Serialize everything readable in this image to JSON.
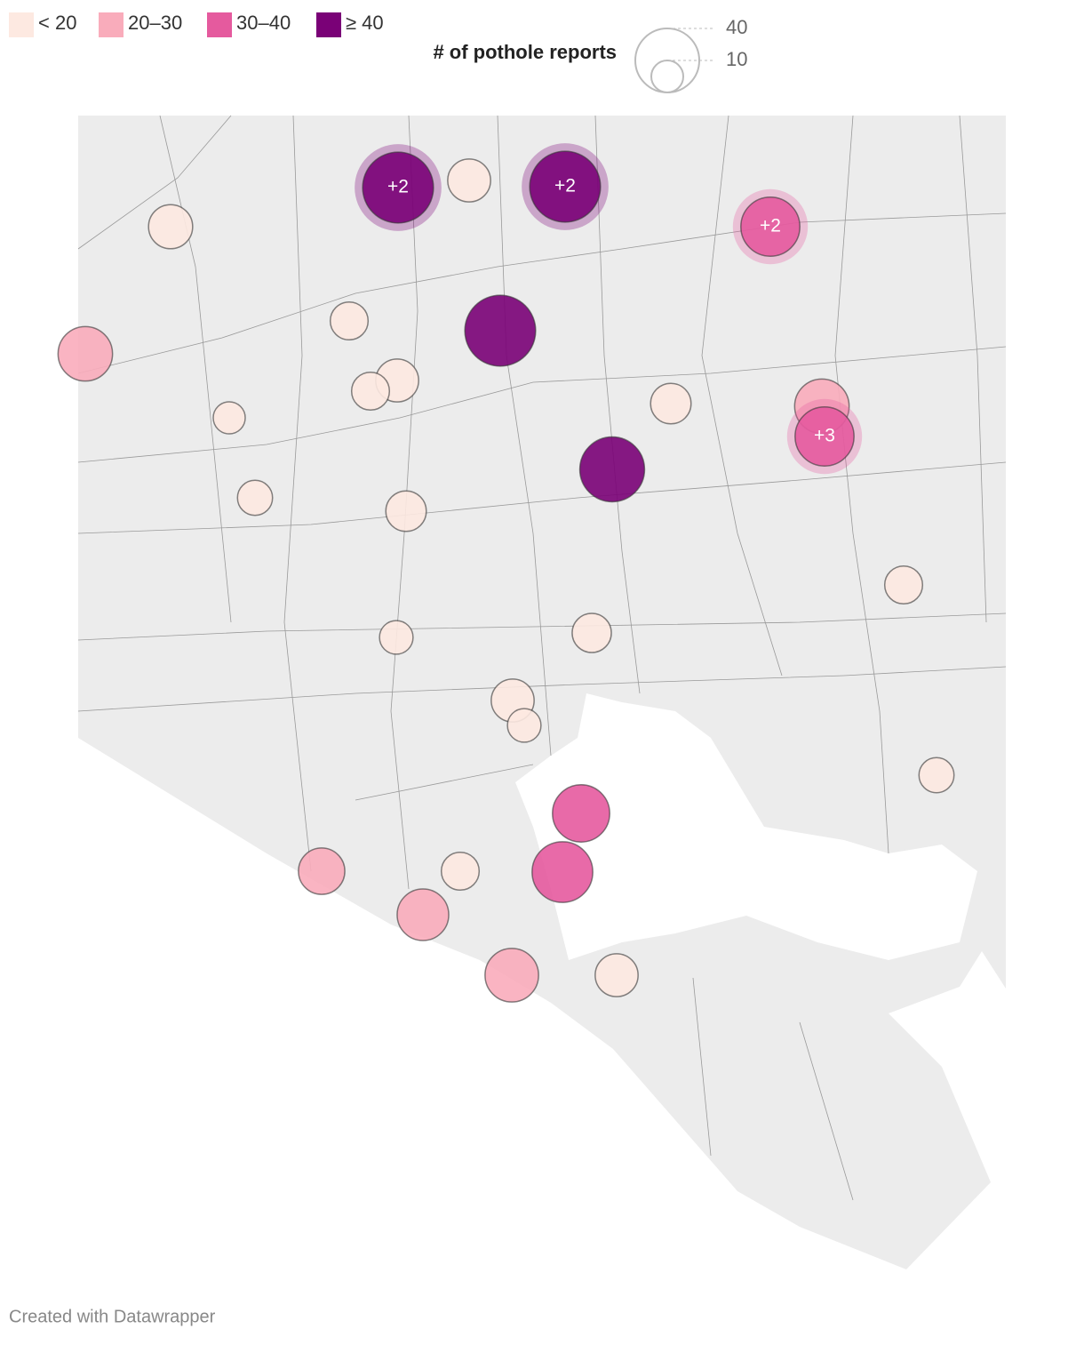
{
  "color_legend": {
    "breaks": [
      20,
      30,
      40
    ],
    "items": [
      {
        "label": "< 20",
        "color": "#fde9e1"
      },
      {
        "label": "20–30",
        "color": "#f9acbb"
      },
      {
        "label": "30–40",
        "color": "#e55a9e"
      },
      {
        "label": "≥ 40",
        "color": "#7a0177"
      }
    ]
  },
  "size_legend": {
    "title": "# of pothole reports",
    "ticks": [
      40,
      10
    ]
  },
  "bubbles": [
    {
      "value": 49,
      "cluster_label": "+2"
    },
    {
      "value": 18
    },
    {
      "value": 49,
      "cluster_label": "+2"
    },
    {
      "value": 34,
      "cluster_label": "+2"
    },
    {
      "value": 19
    },
    {
      "value": 14
    },
    {
      "value": 49
    },
    {
      "value": 29
    },
    {
      "value": 18
    },
    {
      "value": 14
    },
    {
      "value": 10
    },
    {
      "value": 16
    },
    {
      "value": 29
    },
    {
      "value": 34,
      "cluster_label": "+3"
    },
    {
      "value": 41
    },
    {
      "value": 12
    },
    {
      "value": 16
    },
    {
      "value": 14
    },
    {
      "value": 11
    },
    {
      "value": 15
    },
    {
      "value": 18
    },
    {
      "value": 11
    },
    {
      "value": 12
    },
    {
      "value": 32
    },
    {
      "value": 36
    },
    {
      "value": 21
    },
    {
      "value": 14
    },
    {
      "value": 26
    },
    {
      "value": 28
    },
    {
      "value": 18
    }
  ],
  "footer": "Created with Datawrapper"
}
